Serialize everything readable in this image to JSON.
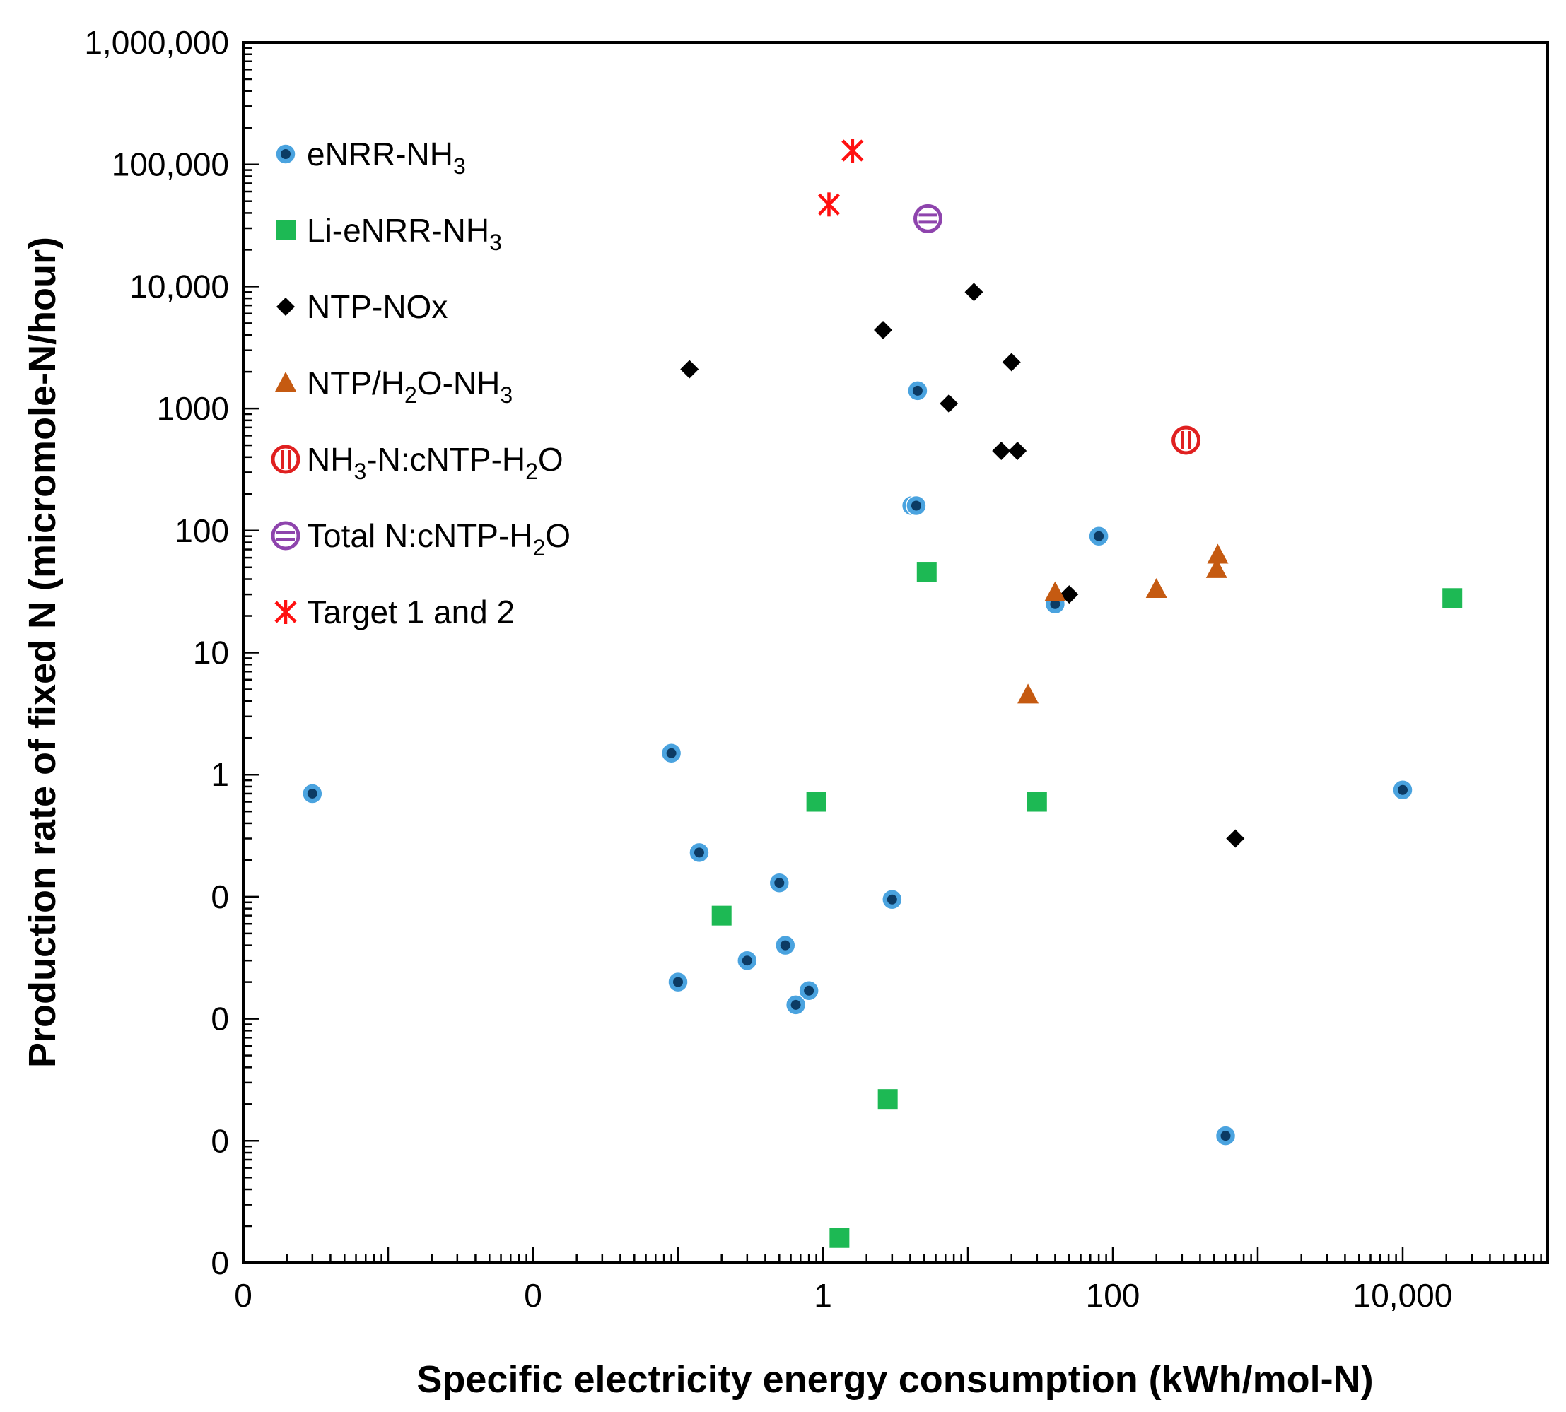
{
  "chart_data": {
    "type": "scatter",
    "xscale": "log",
    "yscale": "log",
    "xlabel": "Specific electricity energy consumption (kWh/mol-N)",
    "ylabel": "Production rate of fixed N (micromole-N/hour)",
    "xlim": [
      0.0001,
      100000
    ],
    "ylim": [
      0.0001,
      1000000
    ],
    "grid": false,
    "legend_position": "top-left",
    "x_ticks": [
      {
        "value": 0.0001,
        "label": "0"
      },
      {
        "value": 0.01,
        "label": "0"
      },
      {
        "value": 1,
        "label": "1"
      },
      {
        "value": 100,
        "label": "100"
      },
      {
        "value": 10000,
        "label": "10,000"
      }
    ],
    "y_ticks": [
      {
        "value": 0.0001,
        "label": "0"
      },
      {
        "value": 0.001,
        "label": "0"
      },
      {
        "value": 0.01,
        "label": "0"
      },
      {
        "value": 0.1,
        "label": "0"
      },
      {
        "value": 1,
        "label": "1"
      },
      {
        "value": 10,
        "label": "10"
      },
      {
        "value": 100,
        "label": "100"
      },
      {
        "value": 1000,
        "label": "1000"
      },
      {
        "value": 10000,
        "label": "10,000"
      },
      {
        "value": 100000,
        "label": "100,000"
      },
      {
        "value": 1000000,
        "label": "1,000,000"
      }
    ],
    "series": [
      {
        "name": "eNRR-NH3",
        "legend_parts": [
          [
            "eNRR-NH",
            false
          ],
          [
            "3",
            true
          ]
        ],
        "marker": "circle-dot",
        "color": "#4aa3df",
        "x": [
          0.0003,
          0.09,
          0.14,
          0.1,
          0.8,
          0.3,
          0.5,
          0.55,
          0.65,
          3.0,
          4.5,
          4.1,
          4.4,
          40,
          80,
          600,
          10000
        ],
        "y": [
          0.7,
          1.5,
          0.23,
          0.02,
          0.017,
          0.03,
          0.13,
          0.04,
          0.013,
          0.095,
          1400,
          160,
          160,
          25,
          90,
          0.0011,
          0.75
        ]
      },
      {
        "name": "Li-eNRR-NH3",
        "legend_parts": [
          [
            "Li-eNRR-NH",
            false
          ],
          [
            "3",
            true
          ]
        ],
        "marker": "square",
        "color": "#1db954",
        "x": [
          0.9,
          0.2,
          1.3,
          2.8,
          5.2,
          30,
          22000
        ],
        "y": [
          0.6,
          0.07,
          0.00016,
          0.0022,
          46,
          0.6,
          28
        ]
      },
      {
        "name": "NTP-NOx",
        "legend_parts": [
          [
            "NTP-NOx",
            false
          ]
        ],
        "marker": "diamond",
        "color": "#000000",
        "x": [
          0.12,
          2.6,
          11,
          7.4,
          20,
          17,
          22,
          50,
          700
        ],
        "y": [
          2100,
          4400,
          9000,
          1100,
          2400,
          450,
          450,
          30,
          0.3
        ]
      },
      {
        "name": "NTP/H2O-NH3",
        "legend_parts": [
          [
            "NTP/H",
            false
          ],
          [
            "2",
            true
          ],
          [
            "O-NH",
            false
          ],
          [
            "3",
            true
          ]
        ],
        "marker": "triangle",
        "color": "#c55a11",
        "x": [
          26,
          40,
          200,
          530,
          520
        ],
        "y": [
          4.5,
          31,
          33,
          63,
          48
        ]
      },
      {
        "name": "NH3-N:cNTP-H2O",
        "legend_parts": [
          [
            "NH",
            false
          ],
          [
            "3",
            true
          ],
          [
            "-N:cNTP-H",
            false
          ],
          [
            "2",
            true
          ],
          [
            "O",
            false
          ]
        ],
        "marker": "circle-vbar",
        "color": "#e02020",
        "x": [
          320
        ],
        "y": [
          550
        ]
      },
      {
        "name": "Total N:cNTP-H2O",
        "legend_parts": [
          [
            "Total N:cNTP-H",
            false
          ],
          [
            "2",
            true
          ],
          [
            "O",
            false
          ]
        ],
        "marker": "circle-hbar",
        "color": "#8e44ad",
        "x": [
          5.3
        ],
        "y": [
          36000
        ]
      },
      {
        "name": "Target 1 and 2",
        "legend_parts": [
          [
            "Target 1 and 2",
            false
          ]
        ],
        "marker": "star",
        "color": "#ff1010",
        "x": [
          1.6,
          1.1
        ],
        "y": [
          130000,
          47000
        ]
      }
    ]
  }
}
